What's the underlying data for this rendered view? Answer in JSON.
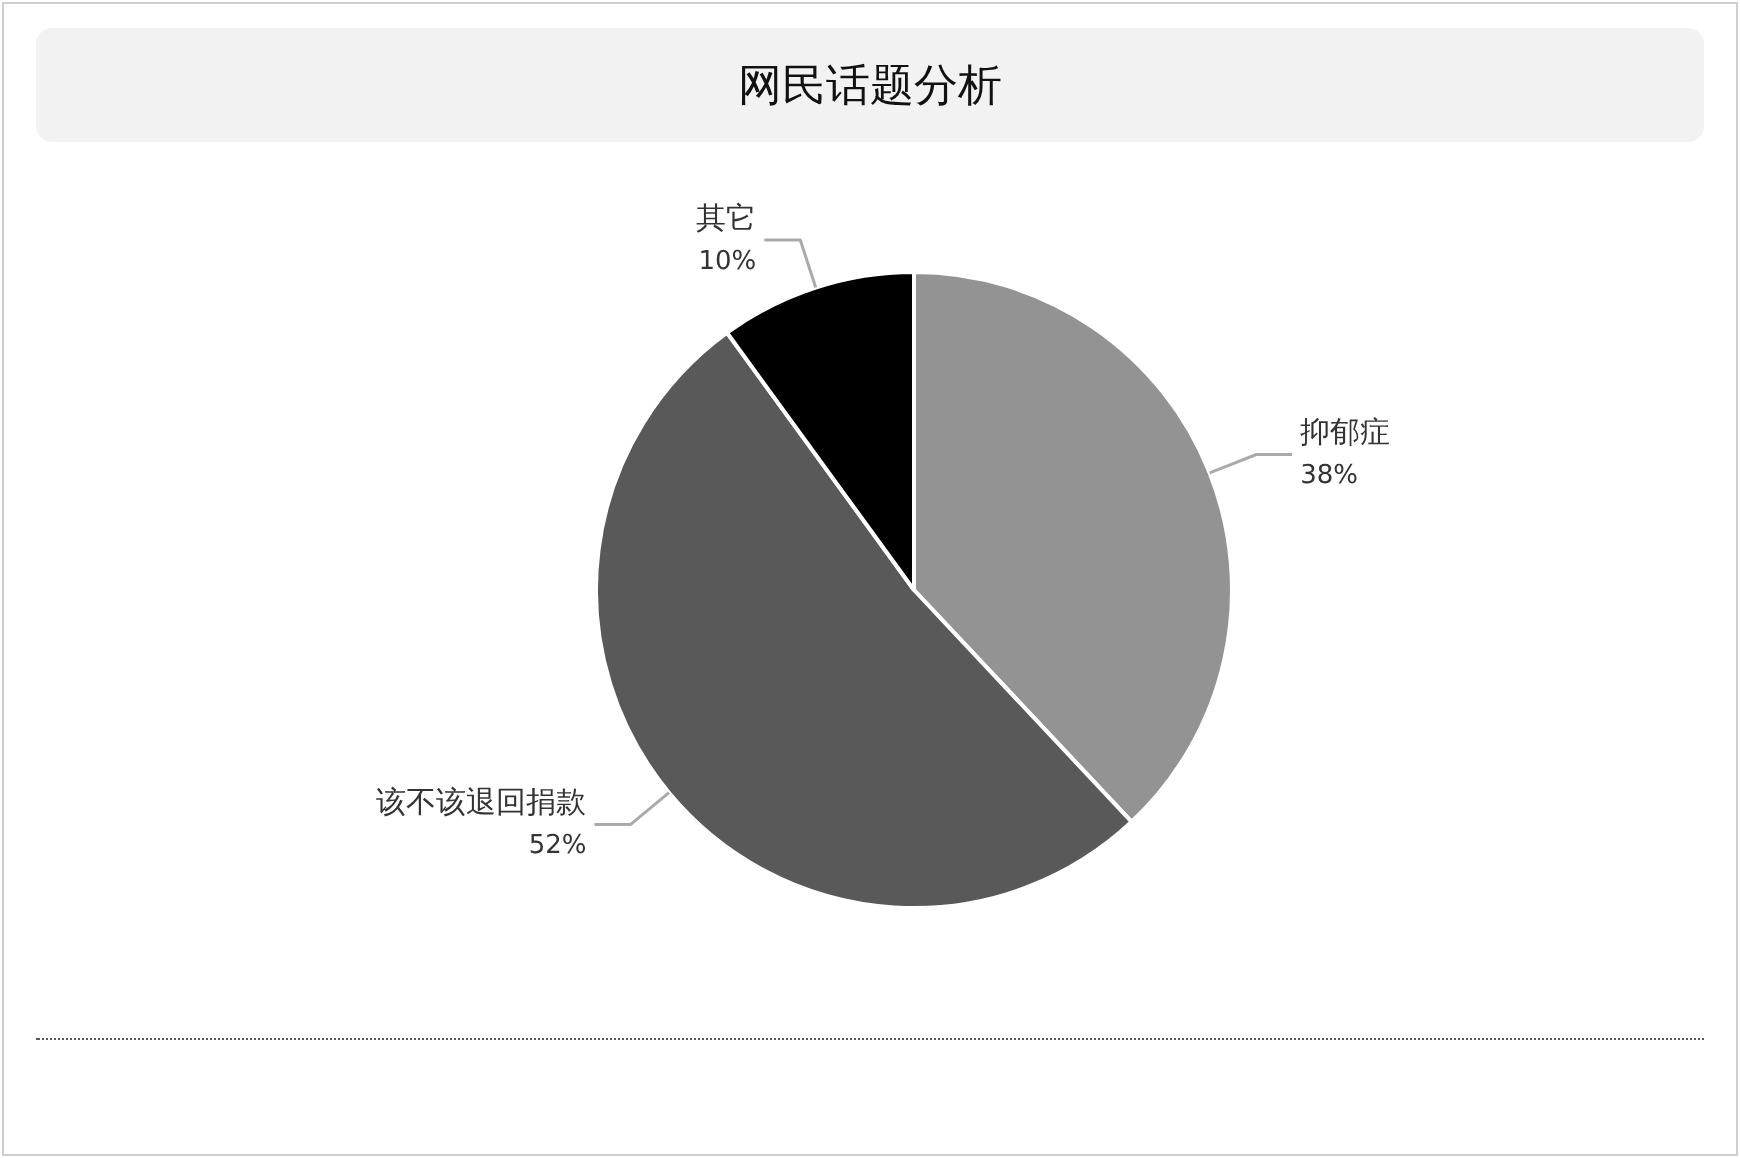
{
  "chart_data": {
    "type": "pie",
    "title": "网民话题分析",
    "categories": [
      "抑郁症",
      "该不该退回捐款",
      "其它"
    ],
    "values": [
      38,
      52,
      10
    ],
    "value_labels": [
      "38%",
      "52%",
      "10%"
    ],
    "colors": [
      "#939393",
      "#595959",
      "#000000"
    ],
    "legend": false
  }
}
